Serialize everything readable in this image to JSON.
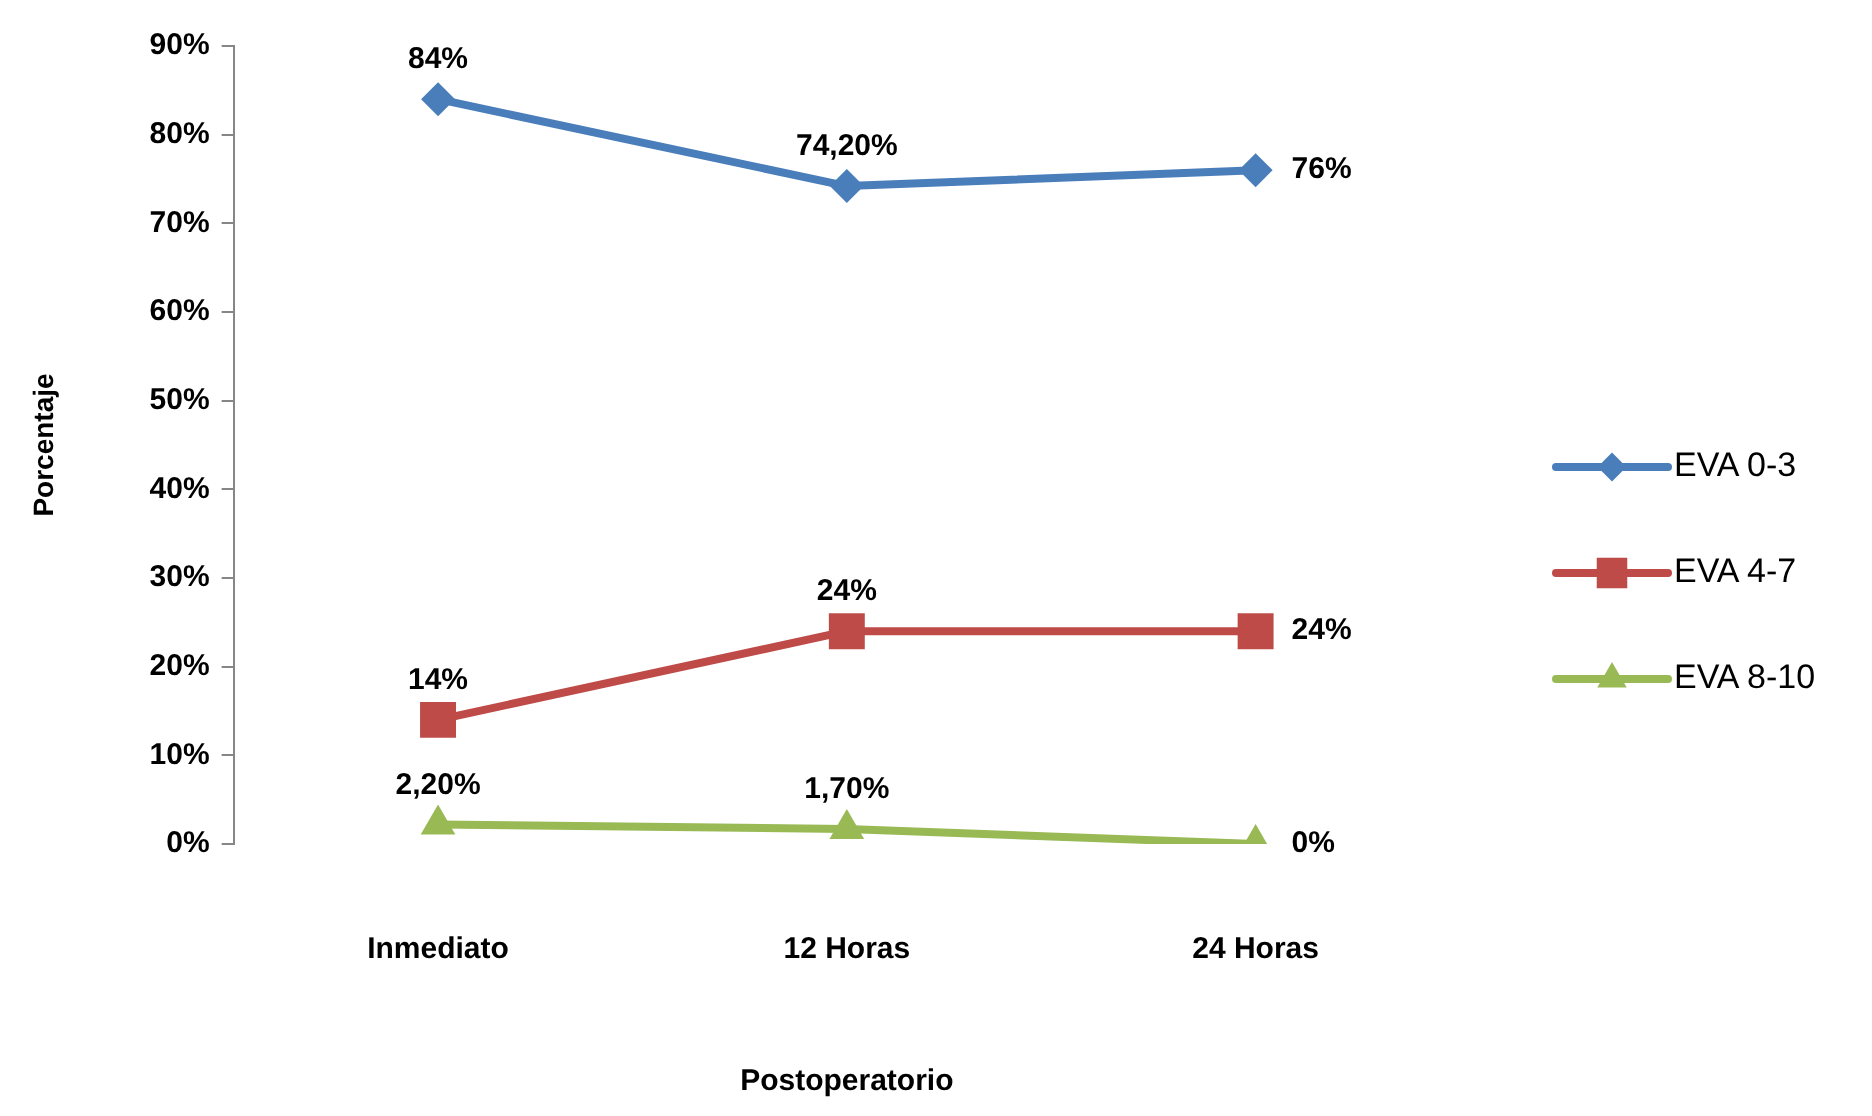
{
  "chart_data": {
    "type": "line",
    "categories": [
      "Inmediato",
      "12 Horas",
      "24 Horas"
    ],
    "xlabel": "Postoperatorio",
    "ylabel": "Porcentaje",
    "ylim": [
      0,
      90
    ],
    "yticks": [
      {
        "value": 0,
        "label": "0%"
      },
      {
        "value": 10,
        "label": "10%"
      },
      {
        "value": 20,
        "label": "20%"
      },
      {
        "value": 30,
        "label": "30%"
      },
      {
        "value": 40,
        "label": "40%"
      },
      {
        "value": 50,
        "label": "50%"
      },
      {
        "value": 60,
        "label": "60%"
      },
      {
        "value": 70,
        "label": "70%"
      },
      {
        "value": 80,
        "label": "80%"
      },
      {
        "value": 90,
        "label": "90%"
      }
    ],
    "grid": false,
    "legend": "right",
    "series": [
      {
        "name": "EVA 0-3",
        "color": "#4a7ebb",
        "marker": "diamond",
        "values": [
          84,
          74.2,
          76
        ],
        "value_labels": [
          "84%",
          "74,20%",
          "76%"
        ]
      },
      {
        "name": "EVA 4-7",
        "color": "#be4b48",
        "marker": "square",
        "values": [
          14,
          24,
          24
        ],
        "value_labels": [
          "14%",
          "24%",
          "24%"
        ]
      },
      {
        "name": "EVA 8-10",
        "color": "#98b954",
        "marker": "triangle",
        "values": [
          2.2,
          1.7,
          0
        ],
        "value_labels": [
          "2,20%",
          "1,70%",
          "0%"
        ]
      }
    ]
  }
}
